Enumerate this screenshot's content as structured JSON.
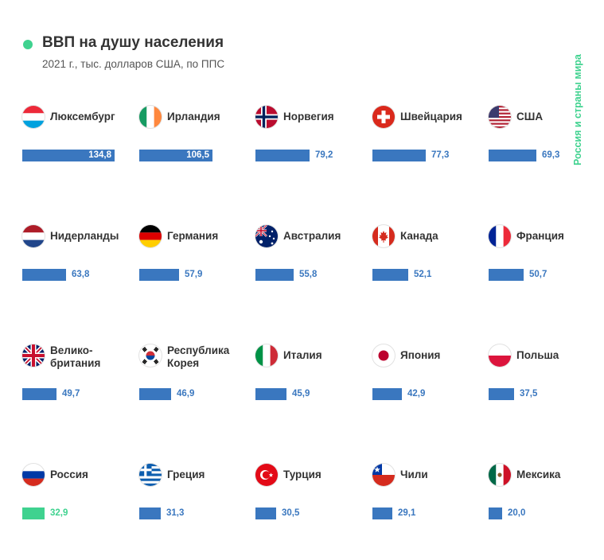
{
  "header": {
    "title": "ВВП на душу населения",
    "subtitle": "2021 г., тыс. долларов США, по ППС",
    "side_label": "Россия и страны мира"
  },
  "colors": {
    "bar": "#3a77bf",
    "highlight_bar": "#3fd28f",
    "accent": "#3fd28f",
    "text": "#333333"
  },
  "chart_data": {
    "type": "bar",
    "orientation": "horizontal",
    "title": "ВВП на душу населения",
    "subtitle": "2021 г., тыс. долларов США, по ППС",
    "categories": [
      "Люксембург",
      "Ирландия",
      "Норвегия",
      "Швейцария",
      "США",
      "Нидерланды",
      "Германия",
      "Австралия",
      "Канада",
      "Франция",
      "Велико-британия",
      "Республика Корея",
      "Италия",
      "Япония",
      "Польша",
      "Россия",
      "Греция",
      "Турция",
      "Чили",
      "Мексика"
    ],
    "values": [
      134.8,
      106.5,
      79.2,
      77.3,
      69.3,
      63.8,
      57.9,
      55.8,
      52.1,
      50.7,
      49.7,
      46.9,
      45.9,
      42.9,
      37.5,
      32.9,
      31.3,
      30.5,
      29.1,
      20.0
    ],
    "value_labels": [
      "134,8",
      "106,5",
      "79,2",
      "77,3",
      "69,3",
      "63,8",
      "57,9",
      "55,8",
      "52,1",
      "50,7",
      "49,7",
      "46,9",
      "45,9",
      "42,9",
      "37,5",
      "32,9",
      "31,3",
      "30,5",
      "29,1",
      "20,0"
    ],
    "highlight": "Россия",
    "flags": [
      "luxembourg-flag",
      "ireland-flag",
      "norway-flag",
      "switzerland-flag",
      "usa-flag",
      "netherlands-flag",
      "germany-flag",
      "australia-flag",
      "canada-flag",
      "france-flag",
      "uk-flag",
      "south-korea-flag",
      "italy-flag",
      "japan-flag",
      "poland-flag",
      "russia-flag",
      "greece-flag",
      "turkey-flag",
      "chile-flag",
      "mexico-flag"
    ],
    "xlim": [
      0,
      134.8
    ]
  }
}
